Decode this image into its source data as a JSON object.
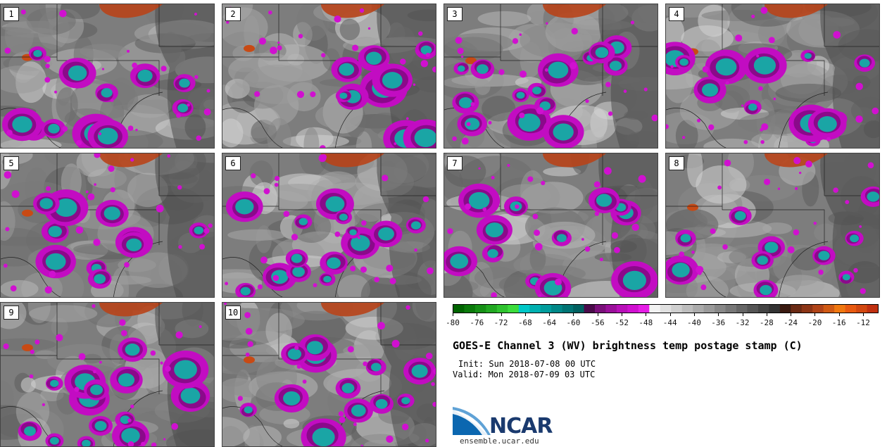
{
  "panels": [
    {
      "label": "1"
    },
    {
      "label": "2"
    },
    {
      "label": "3"
    },
    {
      "label": "4"
    },
    {
      "label": "5"
    },
    {
      "label": "6"
    },
    {
      "label": "7"
    },
    {
      "label": "8"
    },
    {
      "label": "9"
    },
    {
      "label": "10"
    }
  ],
  "colorbar": {
    "ticks": [
      "-80",
      "-76",
      "-72",
      "-68",
      "-64",
      "-60",
      "-56",
      "-52",
      "-48",
      "-44",
      "-40",
      "-36",
      "-32",
      "-28",
      "-24",
      "-20",
      "-16",
      "-12"
    ],
    "colors": [
      "#006400",
      "#0b7a0b",
      "#169016",
      "#22a822",
      "#2fc22f",
      "#3cdc3c",
      "#00c8c8",
      "#00b0b0",
      "#009c9c",
      "#008888",
      "#007474",
      "#006060",
      "#4a0a4a",
      "#7a107a",
      "#9a109a",
      "#b810b8",
      "#d010d0",
      "#e61ee6",
      "#f2f2f2",
      "#e0e0e0",
      "#cfcfcf",
      "#bdbdbd",
      "#ababab",
      "#9a9a9a",
      "#888888",
      "#777777",
      "#666666",
      "#555555",
      "#444444",
      "#333333",
      "#3a1a10",
      "#6a2a14",
      "#8c3516",
      "#b04418",
      "#d05a14",
      "#f07810",
      "#e85a10",
      "#d24810",
      "#c03010"
    ]
  },
  "title": "GOES-E Channel 3 (WV) brightness temp postage stamp (C)",
  "init": "Init: Sun 2018-07-08 00 UTC",
  "valid": "Valid: Mon 2018-07-09 03 UTC",
  "logo": {
    "text": "NCAR",
    "url_text": "ensemble.ucar.edu"
  }
}
